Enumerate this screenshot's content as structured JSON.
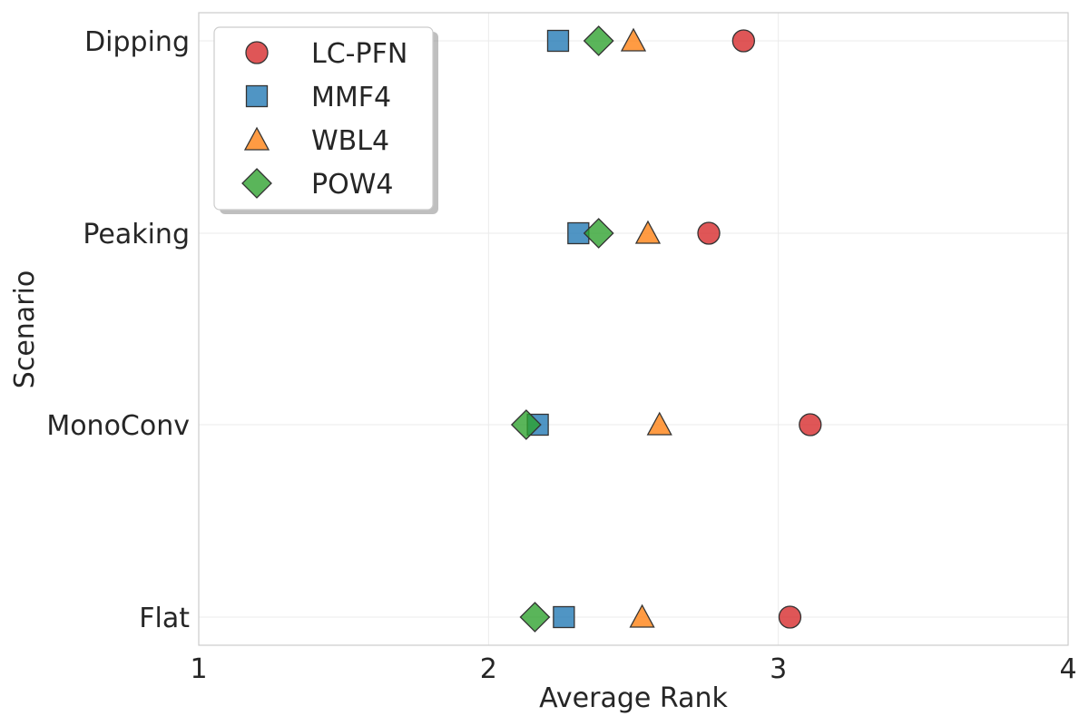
{
  "chart_data": {
    "type": "scatter",
    "orientation": "horizontal",
    "xlabel": "Average Rank",
    "ylabel": "Scenario",
    "xlim": [
      1,
      4
    ],
    "xticks": [
      "1",
      "2",
      "3",
      "4"
    ],
    "categories": [
      "Dipping",
      "Peaking",
      "MonoConv",
      "Flat"
    ],
    "grid": true,
    "legend": {
      "position": "top-left"
    },
    "series": [
      {
        "name": "LC-PFN",
        "marker": "circle",
        "color": "#d62728",
        "values": [
          2.88,
          2.76,
          3.11,
          3.04
        ]
      },
      {
        "name": "MMF4",
        "marker": "square",
        "color": "#1f77b4",
        "values": [
          2.24,
          2.31,
          2.17,
          2.26
        ]
      },
      {
        "name": "WBL4",
        "marker": "triangle",
        "color": "#ff7f0e",
        "values": [
          2.5,
          2.55,
          2.59,
          2.53
        ]
      },
      {
        "name": "POW4",
        "marker": "diamond",
        "color": "#2ca02c",
        "values": [
          2.38,
          2.38,
          2.13,
          2.16
        ]
      }
    ]
  }
}
